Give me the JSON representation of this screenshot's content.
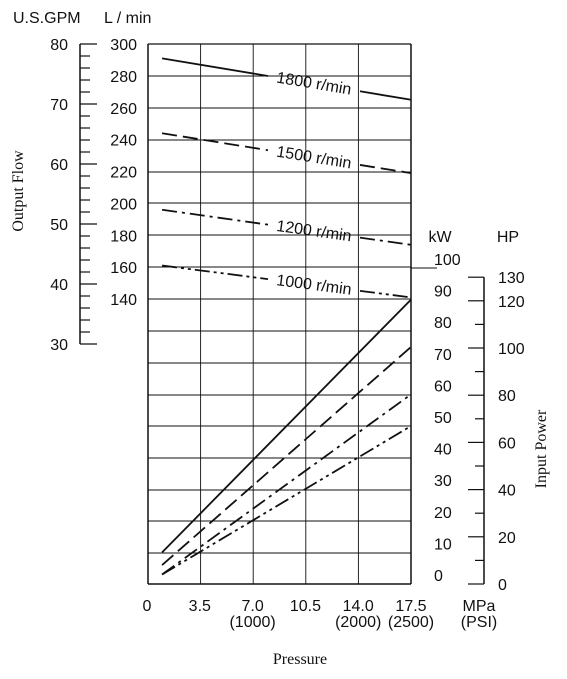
{
  "chart_data": {
    "type": "line",
    "xlabel": "Pressure",
    "x_ticks": [
      "0",
      "3.5",
      "7.0",
      "10.5",
      "14.0",
      "17.5"
    ],
    "x_unit": "MPa",
    "x_ticks_psi": [
      "(1000)",
      "(2000)",
      "(2500)"
    ],
    "x_unit_psi": "(PSI)",
    "xlim": [
      0,
      17.5
    ],
    "left_axis_title": "Output Flow",
    "left_units": {
      "gpm": "U.S.GPM",
      "lmin": "L / min"
    },
    "gpm_ticks": [
      "80",
      "70",
      "60",
      "50",
      "40",
      "30"
    ],
    "lmin_ticks": [
      "300",
      "280",
      "260",
      "240",
      "220",
      "200",
      "180",
      "160",
      "140"
    ],
    "flow_ylim_lmin": [
      140,
      300
    ],
    "right_axis_title": "Input Power",
    "right_units": {
      "kw": "kW",
      "hp": "HP"
    },
    "kw_ticks": [
      "100",
      "90",
      "80",
      "70",
      "60",
      "50",
      "40",
      "30",
      "20",
      "10",
      "0"
    ],
    "hp_ticks": [
      "130",
      "120",
      "100",
      "80",
      "60",
      "40",
      "20",
      "0"
    ],
    "power_ylim_kw": [
      0,
      100
    ],
    "flow_series": [
      {
        "name": "1800 r/min",
        "x": [
          1.0,
          17.5
        ],
        "y": [
          291,
          265
        ]
      },
      {
        "name": "1500 r/min",
        "x": [
          1.0,
          17.5
        ],
        "y": [
          244,
          219
        ]
      },
      {
        "name": "1200 r/min",
        "x": [
          1.0,
          17.5
        ],
        "y": [
          196,
          174
        ]
      },
      {
        "name": "1000 r/min",
        "x": [
          1.0,
          17.5
        ],
        "y": [
          161,
          141
        ]
      }
    ],
    "power_series": [
      {
        "x": [
          1.0,
          17.5
        ],
        "y": [
          10,
          90
        ]
      },
      {
        "x": [
          1.0,
          17.5
        ],
        "y": [
          6,
          75
        ]
      },
      {
        "x": [
          1.0,
          17.5
        ],
        "y": [
          3,
          60
        ]
      },
      {
        "x": [
          1.0,
          17.5
        ],
        "y": [
          3,
          50
        ]
      }
    ],
    "grid": true
  }
}
